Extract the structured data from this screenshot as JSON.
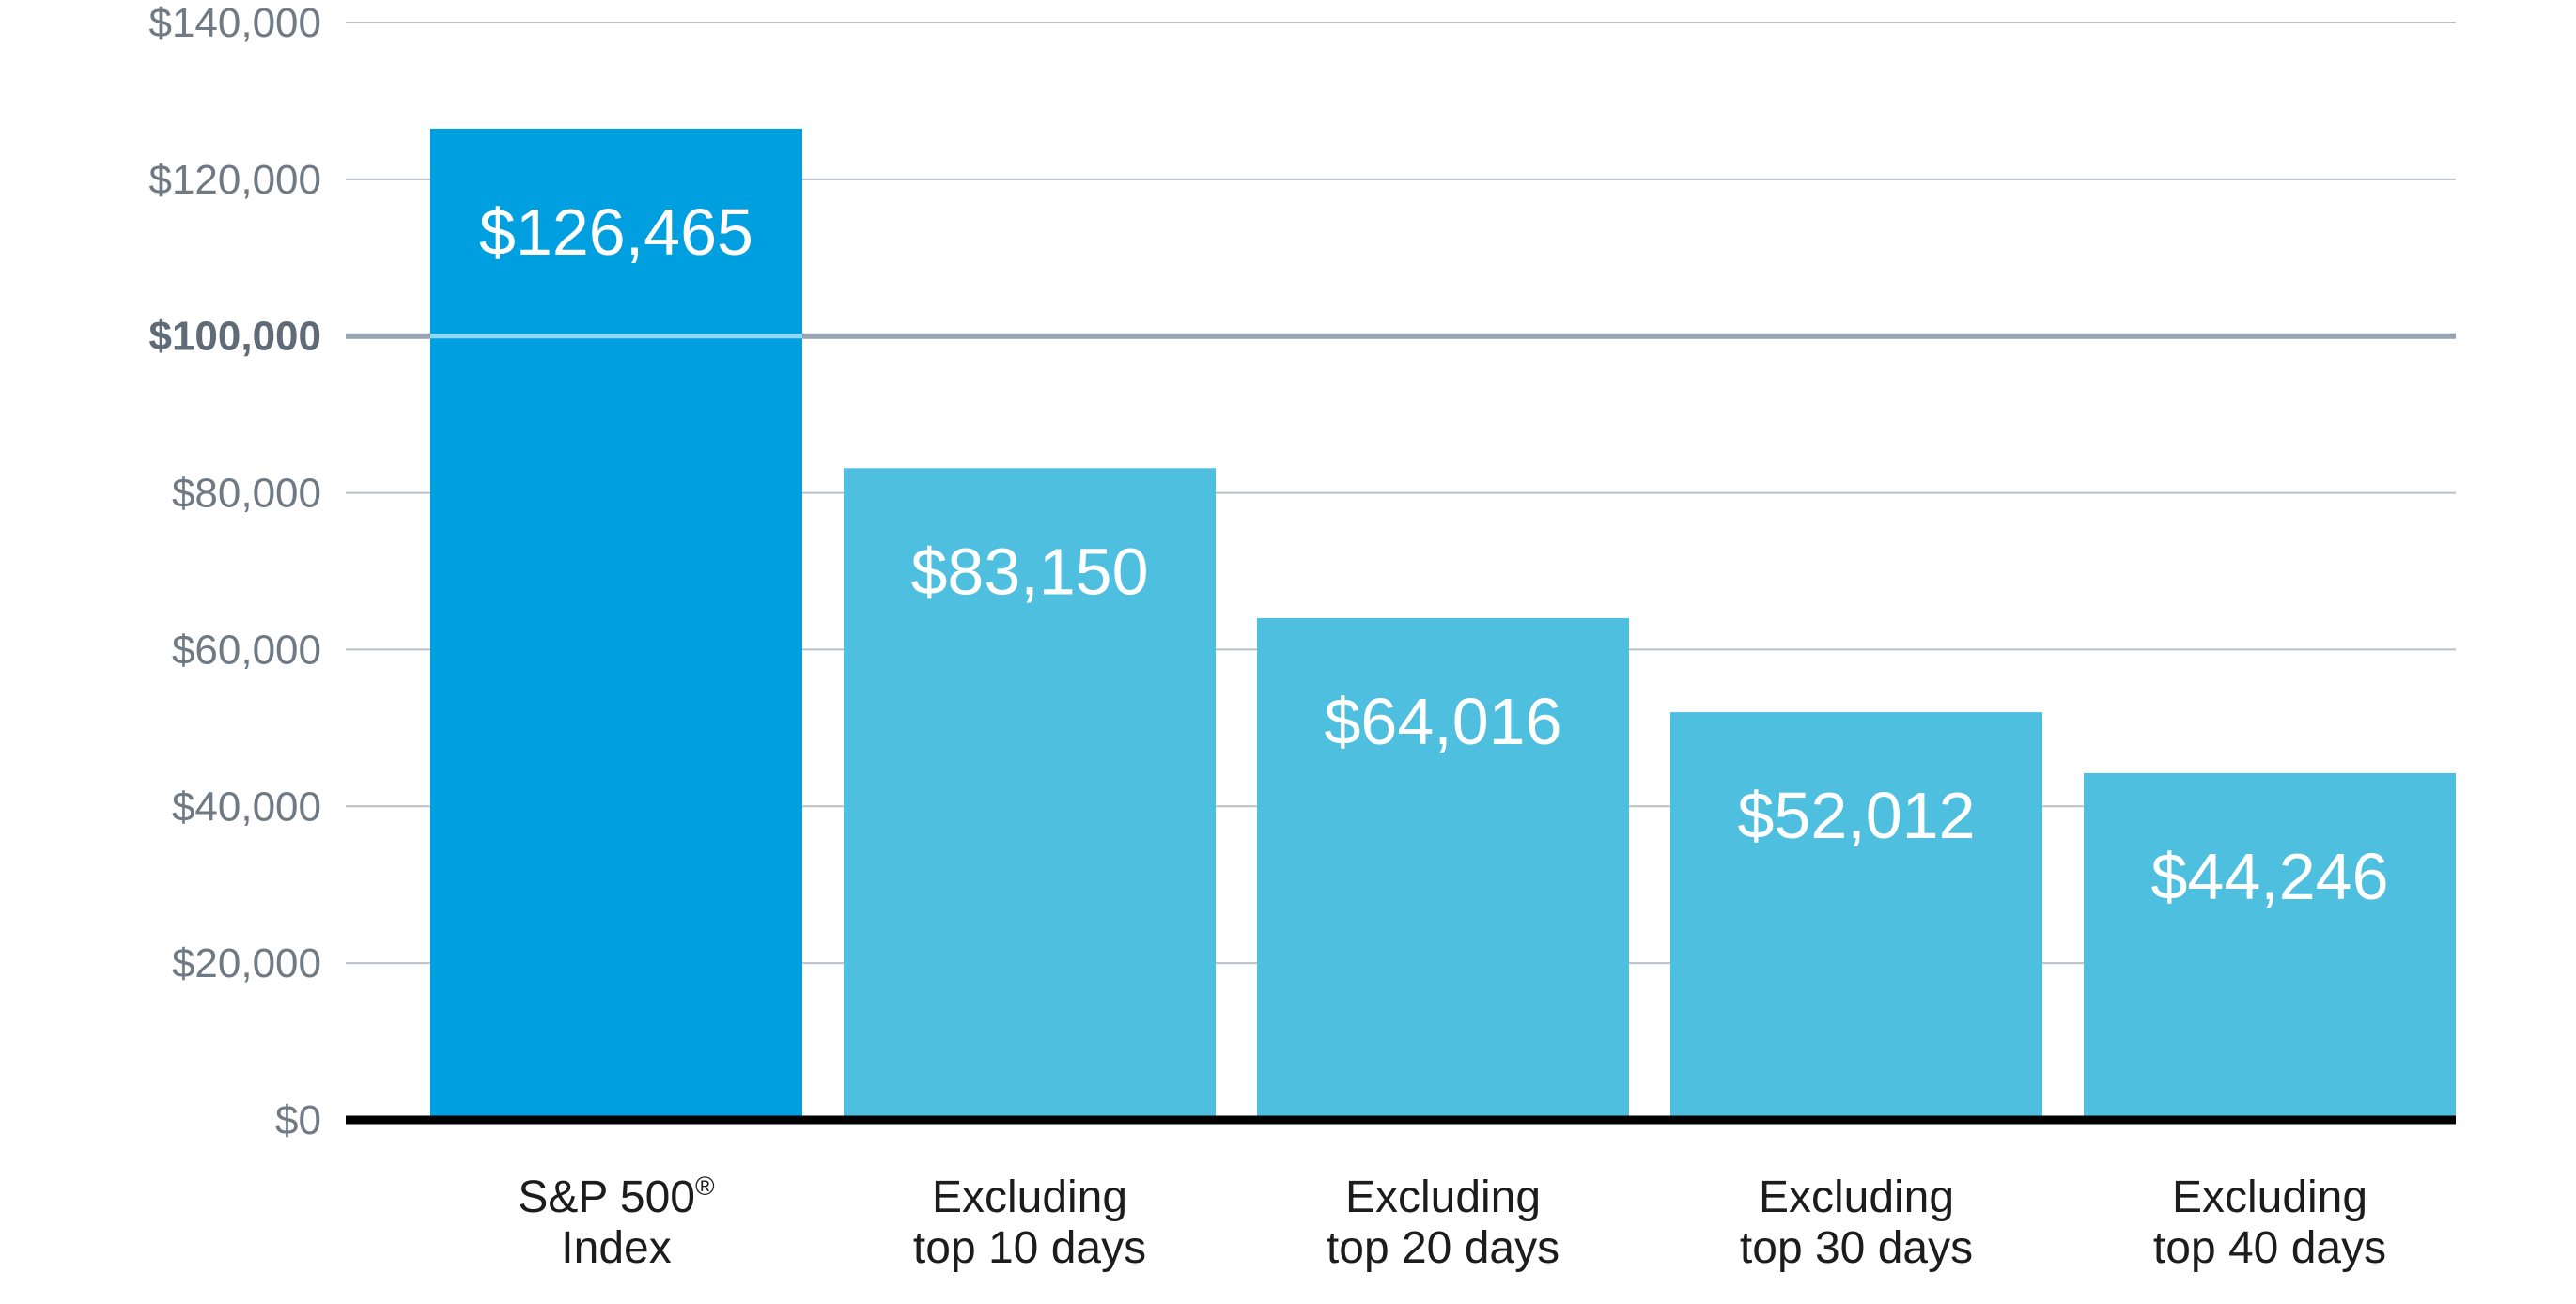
{
  "chart_data": {
    "type": "bar",
    "title": "",
    "xlabel": "",
    "ylabel": "",
    "ylim": [
      0,
      140000
    ],
    "y_ticks": [
      {
        "value": 0,
        "label": "$0"
      },
      {
        "value": 20000,
        "label": "$20,000"
      },
      {
        "value": 40000,
        "label": "$40,000"
      },
      {
        "value": 60000,
        "label": "$60,000"
      },
      {
        "value": 80000,
        "label": "$80,000"
      },
      {
        "value": 100000,
        "label": "$100,000"
      },
      {
        "value": 120000,
        "label": "$120,000"
      },
      {
        "value": 140000,
        "label": "$140,000"
      }
    ],
    "reference_line": {
      "value": 100000,
      "label": "$100,000"
    },
    "categories": [
      {
        "lines": [
          "S&P 500",
          "Index"
        ],
        "superscript": "®"
      },
      {
        "lines": [
          "Excluding",
          "top 10 days"
        ]
      },
      {
        "lines": [
          "Excluding",
          "top 20 days"
        ]
      },
      {
        "lines": [
          "Excluding",
          "top 30 days"
        ]
      },
      {
        "lines": [
          "Excluding",
          "top 40 days"
        ]
      }
    ],
    "values": [
      126465,
      83150,
      64016,
      52012,
      44246
    ],
    "value_labels": [
      "$126,465",
      "$83,150",
      "$64,016",
      "$52,012",
      "$44,246"
    ],
    "colors": {
      "highlight_bar": "#009fdf",
      "bar": "#4fbfe0",
      "gridline": "#b9c0c7",
      "reference_line": "#97a4b1",
      "reference_line_on_bar": "#8fd8f5",
      "baseline": "#000000"
    }
  }
}
